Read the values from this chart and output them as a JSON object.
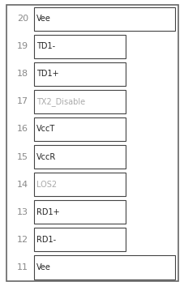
{
  "pins": [
    {
      "num": 20,
      "label": "Vee",
      "full_width": true,
      "label_color": "#222222"
    },
    {
      "num": 19,
      "label": "TD1-",
      "full_width": false,
      "label_color": "#222222"
    },
    {
      "num": 18,
      "label": "TD1+",
      "full_width": false,
      "label_color": "#222222"
    },
    {
      "num": 17,
      "label": "TX2_Disable",
      "full_width": false,
      "label_color": "#aaaaaa"
    },
    {
      "num": 16,
      "label": "VccT",
      "full_width": false,
      "label_color": "#222222"
    },
    {
      "num": 15,
      "label": "VccR",
      "full_width": false,
      "label_color": "#222222"
    },
    {
      "num": 14,
      "label": "LOS2",
      "full_width": false,
      "label_color": "#aaaaaa"
    },
    {
      "num": 13,
      "label": "RD1+",
      "full_width": false,
      "label_color": "#222222"
    },
    {
      "num": 12,
      "label": "RD1-",
      "full_width": false,
      "label_color": "#222222"
    },
    {
      "num": 11,
      "label": "Vee",
      "full_width": true,
      "label_color": "#222222"
    }
  ],
  "background_color": "#ffffff",
  "outer_border_color": "#666666",
  "box_border_color": "#444444",
  "num_color": "#888888",
  "font_size": 7,
  "num_font_size": 8
}
